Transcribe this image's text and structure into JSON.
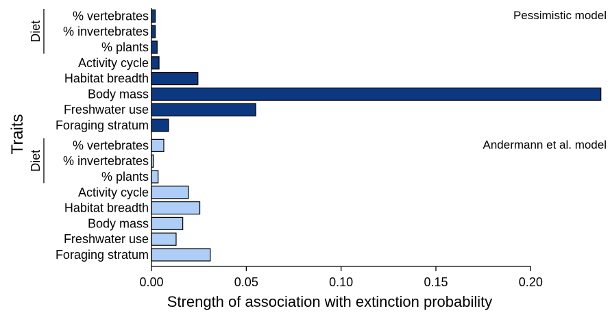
{
  "chart_data": {
    "type": "bar",
    "orientation": "horizontal",
    "xlabel": "Strength of association with extinction probability",
    "ylabel": "Traits",
    "xlim": [
      0,
      0.24
    ],
    "xticks": [
      "0.00",
      "0.05",
      "0.10",
      "0.15",
      "0.20"
    ],
    "xtick_values": [
      0,
      0.05,
      0.1,
      0.15,
      0.2
    ],
    "categories": [
      "% vertebrates",
      "% invertebrates",
      "% plants",
      "Activity cycle",
      "Habitat breadth",
      "Body mass",
      "Freshwater use",
      "Foraging stratum"
    ],
    "group_label": "Diet",
    "group_members": [
      "% vertebrates",
      "% invertebrates",
      "% plants"
    ],
    "grid": false,
    "panels": [
      {
        "title": "Pessimistic model",
        "color": "#0b3880",
        "values": [
          0.002,
          0.002,
          0.003,
          0.004,
          0.0245,
          0.237,
          0.055,
          0.009
        ]
      },
      {
        "title": "Andermann et al. model",
        "color": "#aecdf7",
        "values": [
          0.0065,
          0.001,
          0.0035,
          0.0195,
          0.0255,
          0.0165,
          0.013,
          0.031
        ]
      }
    ]
  }
}
